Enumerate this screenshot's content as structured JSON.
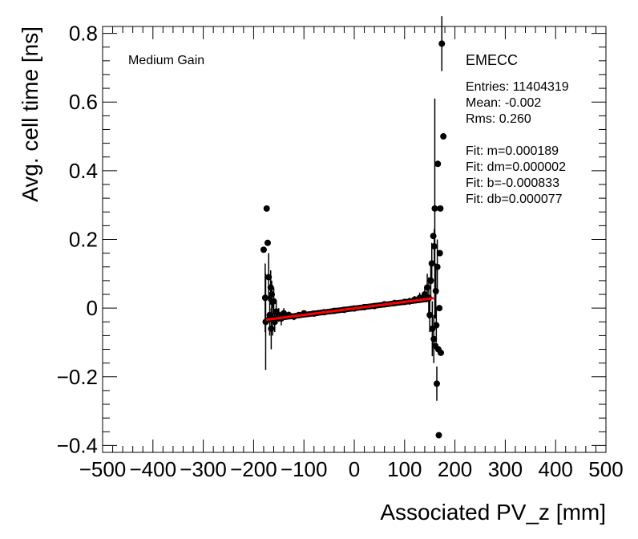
{
  "chart_data": {
    "type": "scatter",
    "title": "",
    "xlabel": "Associated PV_z [mm]",
    "ylabel": "Avg. cell time [ns]",
    "xlim": [
      -500,
      500
    ],
    "ylim": [
      -0.42,
      0.82
    ],
    "x_ticks": [
      -500,
      -400,
      -300,
      -200,
      -100,
      0,
      100,
      200,
      300,
      400,
      500
    ],
    "x_tick_labels": [
      "−500",
      "−400",
      "−300",
      "−200",
      "−100",
      "0",
      "100",
      "200",
      "300",
      "400",
      "500"
    ],
    "y_ticks": [
      -0.4,
      -0.2,
      0,
      0.2,
      0.4,
      0.6,
      0.8
    ],
    "y_tick_labels": [
      "−0.4",
      "−0.2",
      "0",
      "0.2",
      "0.4",
      "0.6",
      "0.8"
    ],
    "grid": false,
    "annotations": {
      "gain": "Medium Gain",
      "partition": "EMECC",
      "stats": [
        "Entries: 11404319",
        "Mean: -0.002",
        "Rms: 0.260"
      ],
      "fit": [
        "Fit: m=0.000189",
        "Fit: dm=0.000002",
        "Fit: b=-0.000833",
        "Fit: db=0.000077"
      ]
    },
    "fit_line": {
      "m": 0.000189,
      "b": -0.000833,
      "x_range": [
        -175,
        158
      ],
      "color": "#ff0000"
    },
    "marker_color": "#000000",
    "points": [
      {
        "x": -180,
        "y": 0.17,
        "err": 0.0
      },
      {
        "x": -177,
        "y": 0.03,
        "err": 0.1
      },
      {
        "x": -176,
        "y": -0.04,
        "err": 0.14
      },
      {
        "x": -174,
        "y": 0.29,
        "err": 0.0
      },
      {
        "x": -172,
        "y": 0.19,
        "err": 0.0
      },
      {
        "x": -170,
        "y": 0.09,
        "err": 0.07
      },
      {
        "x": -168,
        "y": -0.02,
        "err": 0.06
      },
      {
        "x": -166,
        "y": 0.06,
        "err": 0.05
      },
      {
        "x": -165,
        "y": -0.06,
        "err": 0.06
      },
      {
        "x": -164,
        "y": 0.04,
        "err": 0.04
      },
      {
        "x": -162,
        "y": -0.03,
        "err": 0.05
      },
      {
        "x": -160,
        "y": 0.02,
        "err": 0.04
      },
      {
        "x": -158,
        "y": -0.04,
        "err": 0.03
      },
      {
        "x": -155,
        "y": -0.01,
        "err": 0.03
      },
      {
        "x": -150,
        "y": -0.02,
        "err": 0.02
      },
      {
        "x": -145,
        "y": -0.03,
        "err": 0.02
      },
      {
        "x": -140,
        "y": -0.015,
        "err": 0.015
      },
      {
        "x": -130,
        "y": -0.02,
        "err": 0.01
      },
      {
        "x": -120,
        "y": -0.025,
        "err": 0.01
      },
      {
        "x": -110,
        "y": -0.02,
        "err": 0.008
      },
      {
        "x": -100,
        "y": -0.015,
        "err": 0.006
      },
      {
        "x": -80,
        "y": -0.016,
        "err": 0.005
      },
      {
        "x": -60,
        "y": -0.012,
        "err": 0.005
      },
      {
        "x": -40,
        "y": -0.008,
        "err": 0.005
      },
      {
        "x": -20,
        "y": -0.005,
        "err": 0.005
      },
      {
        "x": 0,
        "y": -0.001,
        "err": 0.005
      },
      {
        "x": 20,
        "y": 0.003,
        "err": 0.005
      },
      {
        "x": 40,
        "y": 0.006,
        "err": 0.005
      },
      {
        "x": 60,
        "y": 0.011,
        "err": 0.005
      },
      {
        "x": 80,
        "y": 0.015,
        "err": 0.006
      },
      {
        "x": 100,
        "y": 0.018,
        "err": 0.008
      },
      {
        "x": 110,
        "y": 0.02,
        "err": 0.01
      },
      {
        "x": 120,
        "y": 0.025,
        "err": 0.01
      },
      {
        "x": 130,
        "y": 0.03,
        "err": 0.015
      },
      {
        "x": 140,
        "y": 0.04,
        "err": 0.02
      },
      {
        "x": 145,
        "y": 0.06,
        "err": 0.04
      },
      {
        "x": 148,
        "y": 0.03,
        "err": 0.06
      },
      {
        "x": 150,
        "y": -0.02,
        "err": 0.05
      },
      {
        "x": 152,
        "y": 0.08,
        "err": 0.05
      },
      {
        "x": 154,
        "y": 0.13,
        "err": 0.06
      },
      {
        "x": 155,
        "y": -0.06,
        "err": 0.08
      },
      {
        "x": 157,
        "y": 0.21,
        "err": 0.0
      },
      {
        "x": 158,
        "y": -0.09,
        "err": 0.07
      },
      {
        "x": 159,
        "y": 0.18,
        "err": 0.05
      },
      {
        "x": 160,
        "y": 0.29,
        "err": 0.32
      },
      {
        "x": 161,
        "y": -0.11,
        "err": 0.0
      },
      {
        "x": 162,
        "y": 0.05,
        "err": 0.08
      },
      {
        "x": 163,
        "y": -0.05,
        "err": 0.05
      },
      {
        "x": 164,
        "y": -0.22,
        "err": 0.05
      },
      {
        "x": 165,
        "y": 0.12,
        "err": 0.08
      },
      {
        "x": 166,
        "y": 0.42,
        "err": 0.0
      },
      {
        "x": 167,
        "y": -0.12,
        "err": 0.0
      },
      {
        "x": 168,
        "y": -0.37,
        "err": 0.0
      },
      {
        "x": 169,
        "y": 0.0,
        "err": 0.0
      },
      {
        "x": 170,
        "y": 0.16,
        "err": 0.0
      },
      {
        "x": 171,
        "y": 0.29,
        "err": 0.0
      },
      {
        "x": 172,
        "y": -0.13,
        "err": 0.0
      },
      {
        "x": 174,
        "y": 0.77,
        "err": 0.08
      },
      {
        "x": 177,
        "y": 0.5,
        "err": 0.0
      }
    ]
  }
}
